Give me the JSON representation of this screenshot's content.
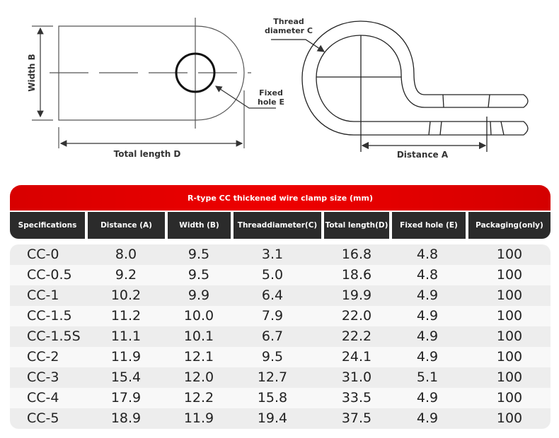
{
  "diagram": {
    "width_label": "Width B",
    "total_length_label": "Total length D",
    "fixed_hole_label": [
      "Fixed",
      "hole E"
    ],
    "thread_diameter_label": [
      "Thread",
      "diameter C"
    ],
    "distance_label": "Distance A"
  },
  "table": {
    "title": "R-type CC thickened wire clamp size (mm)",
    "title_color": "#e00000",
    "header_color": "#2b2b2b",
    "headers": [
      [
        "Specificati",
        "ons"
      ],
      [
        "Distance (A)"
      ],
      [
        "Width (B)"
      ],
      [
        "Thread",
        "diameter(C)"
      ],
      [
        "Total length",
        "(D)"
      ],
      [
        "Fixed hole (E)"
      ],
      [
        "Packaging",
        "(only)"
      ]
    ],
    "rows": [
      [
        "CC-0",
        "8.0",
        "9.5",
        "3.1",
        "16.8",
        "4.8",
        "100"
      ],
      [
        "CC-0.5",
        "9.2",
        "9.5",
        "5.0",
        "18.6",
        "4.8",
        "100"
      ],
      [
        "CC-1",
        "10.2",
        "9.9",
        "6.4",
        "19.9",
        "4.9",
        "100"
      ],
      [
        "CC-1.5",
        "11.2",
        "10.0",
        "7.9",
        "22.0",
        "4.9",
        "100"
      ],
      [
        "CC-1.5S",
        "11.1",
        "10.1",
        "6.7",
        "22.2",
        "4.9",
        "100"
      ],
      [
        "CC-2",
        "11.9",
        "12.1",
        "9.5",
        "24.1",
        "4.9",
        "100"
      ],
      [
        "CC-3",
        "15.4",
        "12.0",
        "12.7",
        "31.0",
        "5.1",
        "100"
      ],
      [
        "CC-4",
        "17.9",
        "12.2",
        "15.8",
        "33.5",
        "4.9",
        "100"
      ],
      [
        "CC-5",
        "18.9",
        "11.9",
        "19.4",
        "37.5",
        "4.9",
        "100"
      ]
    ]
  }
}
